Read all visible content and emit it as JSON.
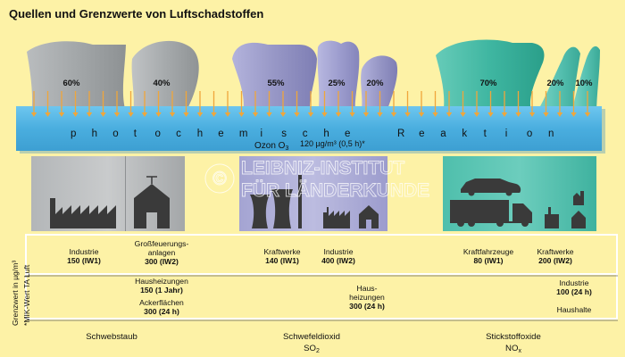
{
  "title": "Quellen und Grenzwerte von Luftschadstoffen",
  "plumes": [
    {
      "label": "60%",
      "color": "#9ea3a5"
    },
    {
      "label": "40%",
      "color": "#a2a7a9"
    },
    {
      "label": "55%",
      "color": "#9a9ac8"
    },
    {
      "label": "25%",
      "color": "#a2a2d2"
    },
    {
      "label": "20%",
      "color": "#9aa8d8"
    },
    {
      "label": "70%",
      "color": "#3fbaa6"
    },
    {
      "label": "20%",
      "color": "#58c6b5"
    },
    {
      "label": "10%",
      "color": "#62c8bb"
    }
  ],
  "band": {
    "word_left": "photochemische",
    "word_right": "Reaktion",
    "ozone_label": "Ozon O",
    "ozone_sub": "3",
    "ozone_value": "120 µg/m³ (0,5 h)*",
    "color": "#4fb0df"
  },
  "watermark": {
    "line1": "LEIBNIZ-INSTITUT",
    "line2": "FÜR LÄNDERKUNDE",
    "symbol": "©"
  },
  "axis": {
    "line1": "Grenzwert in µg/m³",
    "line2": "*MIK-Wert TA Luft"
  },
  "row1": [
    {
      "lines": [
        "Industrie"
      ],
      "value": "150 (IW1)"
    },
    {
      "lines": [
        "Großfeuerungs-",
        "anlagen"
      ],
      "value": "300 (IW2)"
    },
    {
      "lines": [
        "Kraftwerke"
      ],
      "value": "140 (IW1)"
    },
    {
      "lines": [
        "Industrie"
      ],
      "value": "400 (IW2)"
    },
    {
      "lines": [
        "Kraftfahrzeuge"
      ],
      "value": "80 (IW1)"
    },
    {
      "lines": [
        "Kraftwerke"
      ],
      "value": "200 (IW2)"
    }
  ],
  "row2": [
    {
      "lines": [
        "Hausheizungen"
      ],
      "value": "150 (1 Jahr)"
    },
    {
      "lines": [
        "Ackerflächen"
      ],
      "value": "300 (24 h)"
    },
    {
      "lines": [
        "Haus-",
        "heizungen"
      ],
      "value": "300 (24 h)"
    },
    {
      "lines": [
        "Industrie"
      ],
      "value": "100 (24 h)"
    },
    {
      "lines": [
        "Haushalte"
      ],
      "value": ""
    }
  ],
  "pollutants": [
    {
      "name": "Schwebstaub",
      "formula": "",
      "sub": ""
    },
    {
      "name": "Schwefeldioxid",
      "formula": "SO",
      "sub": "2"
    },
    {
      "name": "Stickstoffoxide",
      "formula": "NO",
      "sub": "x"
    }
  ],
  "colors": {
    "background": "#fdf2a6",
    "arrow": "#f0a63a",
    "silhouette": "#3a3a3a",
    "white_box": "#ffffff",
    "rule": "#555555"
  }
}
